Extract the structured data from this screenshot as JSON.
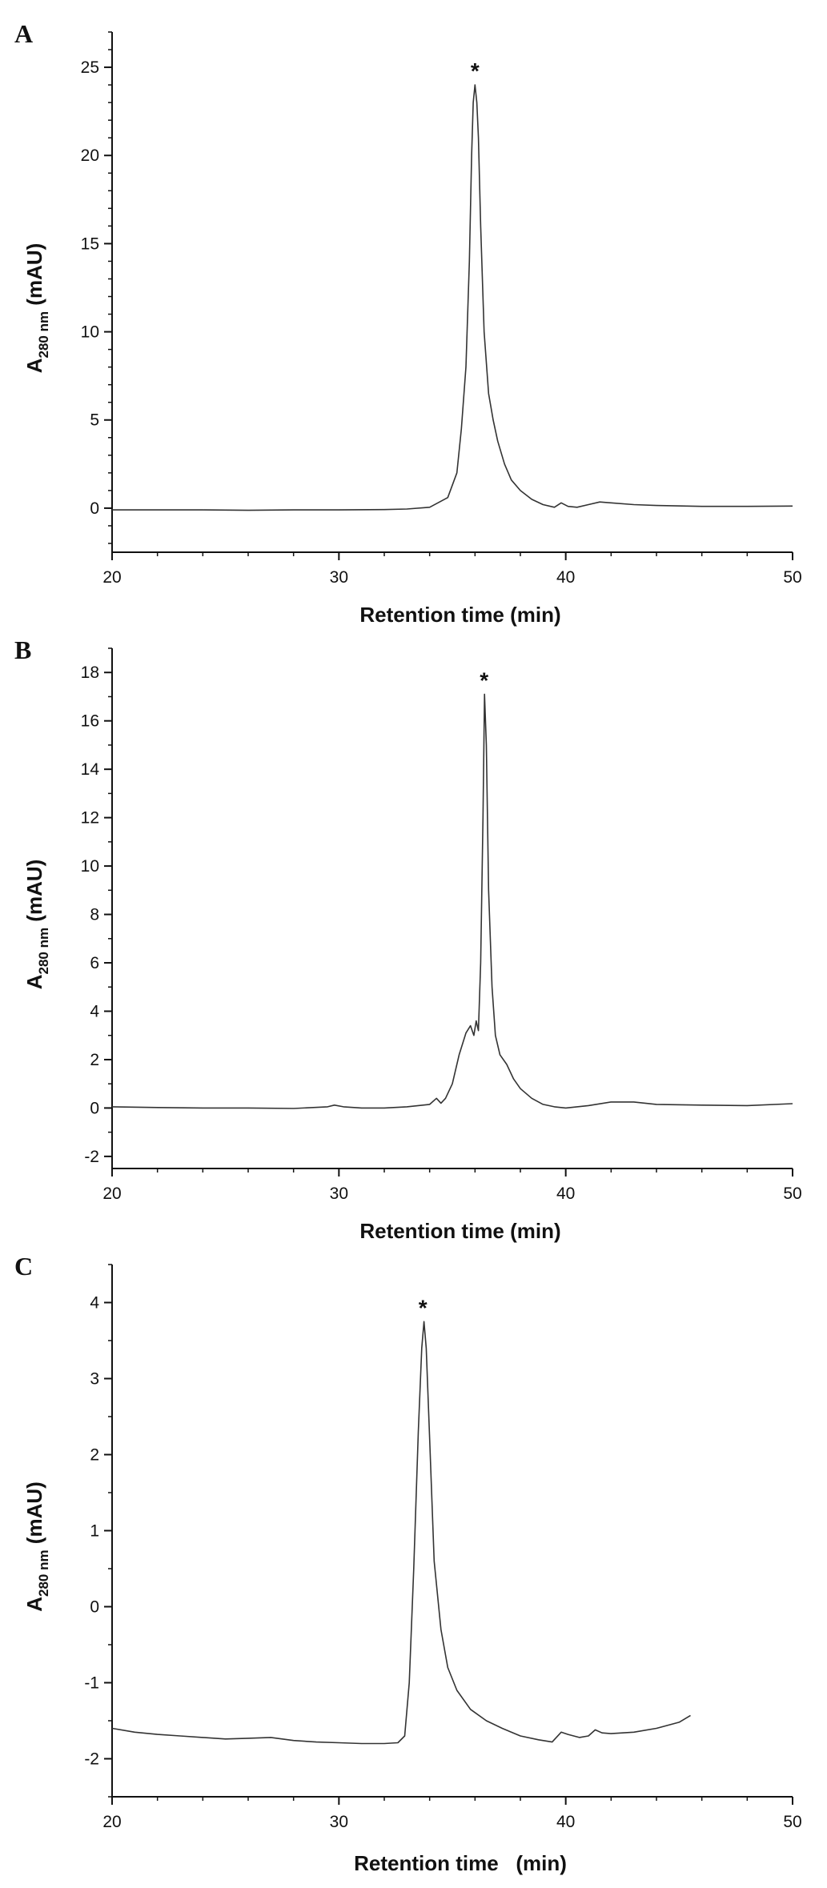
{
  "chart_data": [
    {
      "panel": "A",
      "type": "line",
      "xlabel": "Retention time (min)",
      "ylabel_main": "A",
      "ylabel_sub": "280 nm",
      "ylabel_unit": "(mAU)",
      "xlim": [
        20,
        50
      ],
      "ylim": [
        -2.5,
        27
      ],
      "xticks": [
        20,
        30,
        40,
        50
      ],
      "yticks": [
        0,
        5,
        10,
        15,
        20,
        25
      ],
      "y_minor_step": 1,
      "x_minor_step": 2,
      "peak_marker": {
        "x": 36.0,
        "y": 24.0,
        "label": "*"
      },
      "series": [
        {
          "x": [
            20,
            22,
            24,
            26,
            28,
            30,
            32,
            33,
            34,
            34.8,
            35.2,
            35.4,
            35.6,
            35.75,
            35.85,
            35.92,
            36.0,
            36.08,
            36.15,
            36.25,
            36.4,
            36.6,
            36.8,
            37.0,
            37.3,
            37.6,
            38.0,
            38.5,
            39.0,
            39.5,
            39.8,
            40.1,
            40.5,
            41.0,
            41.5,
            42.0,
            43,
            44,
            46,
            48,
            50
          ],
          "y": [
            -0.1,
            -0.1,
            -0.1,
            -0.12,
            -0.1,
            -0.1,
            -0.08,
            -0.05,
            0.05,
            0.6,
            2.0,
            4.5,
            8.0,
            14.0,
            20.0,
            23.0,
            24.0,
            23.0,
            21.0,
            16.0,
            10.0,
            6.5,
            5.0,
            3.8,
            2.5,
            1.6,
            1.0,
            0.5,
            0.2,
            0.05,
            0.3,
            0.1,
            0.05,
            0.2,
            0.35,
            0.3,
            0.2,
            0.15,
            0.1,
            0.1,
            0.12
          ]
        }
      ]
    },
    {
      "panel": "B",
      "type": "line",
      "xlabel": "Retention time (min)",
      "ylabel_main": "A",
      "ylabel_sub": "280 nm",
      "ylabel_unit": "(mAU)",
      "xlim": [
        20,
        50
      ],
      "ylim": [
        -2.5,
        19
      ],
      "xticks": [
        20,
        30,
        40,
        50
      ],
      "yticks": [
        -2,
        0,
        2,
        4,
        6,
        8,
        10,
        12,
        14,
        16,
        18
      ],
      "y_minor_step": 1,
      "x_minor_step": 2,
      "peak_marker": {
        "x": 36.4,
        "y": 17.1,
        "label": "*"
      },
      "series": [
        {
          "x": [
            20,
            22,
            24,
            26,
            28,
            29.5,
            29.8,
            30.2,
            31,
            32,
            33,
            34,
            34.3,
            34.5,
            34.7,
            35.0,
            35.3,
            35.6,
            35.8,
            35.95,
            36.05,
            36.15,
            36.25,
            36.35,
            36.42,
            36.5,
            36.6,
            36.75,
            36.9,
            37.1,
            37.4,
            37.7,
            38.0,
            38.5,
            39.0,
            39.5,
            40.0,
            41,
            42,
            43,
            44,
            46,
            48,
            50
          ],
          "y": [
            0.05,
            0.02,
            0.0,
            0.0,
            -0.02,
            0.05,
            0.12,
            0.05,
            0.0,
            0.0,
            0.05,
            0.15,
            0.4,
            0.2,
            0.4,
            1.0,
            2.2,
            3.1,
            3.4,
            3.0,
            3.6,
            3.2,
            6.0,
            12.0,
            17.1,
            15.0,
            9.0,
            5.0,
            3.0,
            2.2,
            1.8,
            1.2,
            0.8,
            0.4,
            0.15,
            0.05,
            0.0,
            0.1,
            0.25,
            0.25,
            0.15,
            0.12,
            0.1,
            0.18
          ]
        }
      ]
    },
    {
      "panel": "C",
      "type": "line",
      "xlabel": "Retention time   (min)",
      "ylabel_main": "A",
      "ylabel_sub": "280 nm",
      "ylabel_unit": "(mAU)",
      "xlim": [
        20,
        50
      ],
      "ylim": [
        -2.5,
        4.5
      ],
      "xticks": [
        20,
        30,
        40,
        50
      ],
      "yticks": [
        -2,
        -1,
        0,
        1,
        2,
        3,
        4
      ],
      "y_minor_step": 0.5,
      "x_minor_step": 2,
      "peak_marker": {
        "x": 33.7,
        "y": 3.75,
        "label": "*"
      },
      "series": [
        {
          "x": [
            20,
            21,
            22,
            23,
            24,
            25,
            26,
            27,
            28,
            29,
            30,
            31,
            32,
            32.6,
            32.9,
            33.1,
            33.3,
            33.5,
            33.65,
            33.75,
            33.85,
            34.0,
            34.2,
            34.5,
            34.8,
            35.2,
            35.8,
            36.5,
            37.2,
            38.0,
            38.8,
            39.4,
            39.8,
            40.1,
            40.6,
            41.0,
            41.3,
            41.6,
            42.0,
            43.0,
            44.0,
            45.0,
            45.5
          ],
          "y": [
            -1.6,
            -1.65,
            -1.68,
            -1.7,
            -1.72,
            -1.74,
            -1.73,
            -1.72,
            -1.76,
            -1.78,
            -1.79,
            -1.8,
            -1.8,
            -1.79,
            -1.7,
            -1.0,
            0.5,
            2.3,
            3.4,
            3.75,
            3.4,
            2.2,
            0.6,
            -0.3,
            -0.8,
            -1.1,
            -1.35,
            -1.5,
            -1.6,
            -1.7,
            -1.75,
            -1.78,
            -1.65,
            -1.68,
            -1.72,
            -1.7,
            -1.62,
            -1.66,
            -1.67,
            -1.65,
            -1.6,
            -1.52,
            -1.43
          ]
        }
      ]
    }
  ]
}
